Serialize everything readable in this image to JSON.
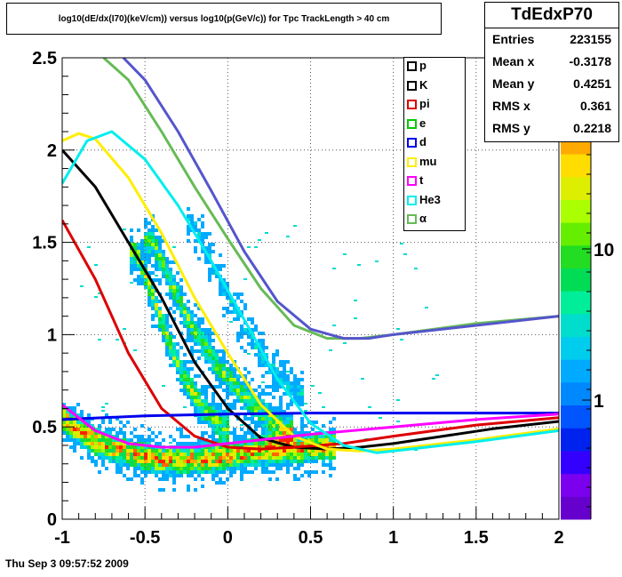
{
  "title": "log10(dE/dx(I70)(keV/cm)) versus log10(p(GeV/c)) for Tpc TrackLength > 40 cm",
  "timestamp": "Thu Sep  3 09:57:52 2009",
  "stats": {
    "name": "TdEdxP70",
    "rows": [
      {
        "label": "Entries",
        "value": "223155"
      },
      {
        "label": "Mean x",
        "value": "-0.3178"
      },
      {
        "label": "Mean y",
        "value": "0.4251"
      },
      {
        "label": "RMS x",
        "value": "0.361"
      },
      {
        "label": "RMS y",
        "value": "0.2218"
      }
    ]
  },
  "chart_data": {
    "type": "heatmap",
    "xlim": [
      -1,
      2
    ],
    "ylim": [
      0,
      2.5
    ],
    "x_ticks": [
      "-1",
      "-0.5",
      "0",
      "0.5",
      "1",
      "1.5",
      "2"
    ],
    "y_ticks": [
      "0",
      "0.5",
      "1",
      "1.5",
      "2",
      "2.5"
    ],
    "grid": true,
    "color_scale": "log",
    "color_axis_labels": [
      "1",
      "10"
    ],
    "palette": [
      "#6600cc",
      "#7a00ee",
      "#3300ff",
      "#0022ee",
      "#0055ff",
      "#0088ff",
      "#00aaff",
      "#00ccee",
      "#00ddcc",
      "#00ee99",
      "#00dd55",
      "#22dd22",
      "#66ee00",
      "#aaff00",
      "#ddee00",
      "#ffdd00",
      "#ffaa00",
      "#ff6600",
      "#ff2200"
    ],
    "density_bands": [
      {
        "desc": "pion/electron band",
        "x": [
          -1.0,
          -0.8,
          -0.6,
          -0.4,
          -0.2,
          0.0,
          0.2,
          0.4,
          0.6
        ],
        "y": [
          0.55,
          0.42,
          0.36,
          0.32,
          0.32,
          0.34,
          0.37,
          0.38,
          0.39
        ],
        "peak": 0.95
      },
      {
        "desc": "kaon band",
        "x": [
          -0.55,
          -0.45,
          -0.35,
          -0.25,
          -0.15,
          -0.05
        ],
        "y": [
          1.45,
          1.2,
          0.95,
          0.75,
          0.6,
          0.52
        ],
        "peak": 0.75
      },
      {
        "desc": "proton band",
        "x": [
          -0.45,
          -0.35,
          -0.25,
          -0.15,
          -0.05,
          0.05,
          0.15,
          0.25,
          0.35
        ],
        "y": [
          1.5,
          1.3,
          1.1,
          0.95,
          0.82,
          0.72,
          0.62,
          0.55,
          0.48
        ],
        "peak": 0.7
      },
      {
        "desc": "deuteron band",
        "x": [
          -0.2,
          -0.1,
          0.0,
          0.1,
          0.2,
          0.3,
          0.4
        ],
        "y": [
          1.6,
          1.4,
          1.2,
          1.05,
          0.9,
          0.78,
          0.68
        ],
        "peak": 0.45
      }
    ],
    "series": [
      {
        "name": "p",
        "color": "#ffffff",
        "x": [],
        "y": []
      },
      {
        "name": "K",
        "color": "#000000",
        "x": [
          -1.0,
          -0.8,
          -0.6,
          -0.4,
          -0.2,
          0.0,
          0.2,
          0.4,
          0.6,
          0.8,
          1.0,
          1.3,
          1.6,
          2.0
        ],
        "y": [
          2.0,
          1.8,
          1.5,
          1.2,
          0.85,
          0.6,
          0.44,
          0.39,
          0.38,
          0.39,
          0.41,
          0.45,
          0.49,
          0.53
        ]
      },
      {
        "name": "pi",
        "color": "#dd0000",
        "x": [
          -1.0,
          -0.8,
          -0.6,
          -0.4,
          -0.2,
          0.0,
          0.2,
          0.4,
          0.7,
          1.0,
          1.5,
          2.0
        ],
        "y": [
          1.62,
          1.3,
          0.9,
          0.6,
          0.45,
          0.39,
          0.38,
          0.39,
          0.41,
          0.45,
          0.51,
          0.55
        ]
      },
      {
        "name": "e",
        "color": "#00cc00",
        "x": [],
        "y": []
      },
      {
        "name": "d",
        "color": "#0000ee",
        "x": [
          -1.0,
          -0.5,
          0.0,
          0.5,
          1.0,
          1.5,
          2.0
        ],
        "y": [
          0.54,
          0.56,
          0.57,
          0.575,
          0.575,
          0.575,
          0.575
        ]
      },
      {
        "name": "mu",
        "color": "#ffee00",
        "x": [
          -1.0,
          -0.9,
          -0.8,
          -0.6,
          -0.4,
          -0.2,
          0.0,
          0.2,
          0.4,
          0.6,
          0.8,
          1.0,
          1.5,
          2.0
        ],
        "y": [
          2.05,
          2.09,
          2.06,
          1.85,
          1.55,
          1.2,
          0.9,
          0.62,
          0.45,
          0.38,
          0.37,
          0.38,
          0.43,
          0.49
        ]
      },
      {
        "name": "t",
        "color": "#ff00ff",
        "x": [
          -1.0,
          -0.8,
          -0.6,
          -0.4,
          -0.2,
          0.0,
          0.2,
          0.5,
          1.0,
          1.5,
          2.0
        ],
        "y": [
          0.62,
          0.48,
          0.41,
          0.39,
          0.39,
          0.41,
          0.43,
          0.46,
          0.5,
          0.54,
          0.57
        ]
      },
      {
        "name": "He3",
        "color": "#00eeee",
        "x": [
          -1.0,
          -0.85,
          -0.7,
          -0.5,
          -0.3,
          -0.1,
          0.1,
          0.3,
          0.5,
          0.7,
          0.9,
          1.0,
          1.5,
          2.0
        ],
        "y": [
          1.82,
          2.05,
          2.1,
          1.95,
          1.7,
          1.4,
          1.08,
          0.76,
          0.52,
          0.4,
          0.36,
          0.37,
          0.42,
          0.48
        ]
      },
      {
        "name": "α",
        "color": "#66bb55",
        "x": [
          -0.75,
          -0.6,
          -0.4,
          -0.2,
          0.0,
          0.2,
          0.4,
          0.6,
          0.8,
          1.0,
          1.5,
          2.0
        ],
        "y": [
          2.5,
          2.38,
          2.1,
          1.8,
          1.52,
          1.25,
          1.05,
          0.98,
          0.98,
          1.0,
          1.06,
          1.1
        ]
      },
      {
        "name": "",
        "color": "#5555cc",
        "x": [
          -0.63,
          -0.5,
          -0.3,
          -0.1,
          0.1,
          0.3,
          0.5,
          0.7,
          0.85,
          1.0,
          1.5,
          2.0
        ],
        "y": [
          2.5,
          2.38,
          2.1,
          1.78,
          1.45,
          1.18,
          1.03,
          0.98,
          0.98,
          1.0,
          1.05,
          1.1
        ]
      }
    ]
  }
}
